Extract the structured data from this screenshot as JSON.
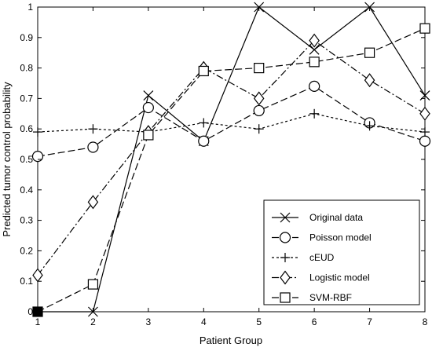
{
  "chart_data": {
    "type": "line",
    "xlabel": "Patient Group",
    "ylabel": "Predicted tumor control probability",
    "x": [
      1,
      2,
      3,
      4,
      5,
      6,
      7,
      8
    ],
    "xlim": [
      1,
      8
    ],
    "ylim": [
      0,
      1
    ],
    "xticks": [
      "1",
      "2",
      "3",
      "4",
      "5",
      "6",
      "7",
      "8"
    ],
    "yticks": [
      "0",
      "0.1",
      "0.2",
      "0.3",
      "0.4",
      "0.5",
      "0.6",
      "0.7",
      "0.8",
      "0.9",
      "1"
    ],
    "grid": false,
    "legend_position": "bottom-right",
    "series": [
      {
        "name": "Original data",
        "marker": "x",
        "line": "solid",
        "values": [
          0,
          0,
          0.71,
          0.56,
          1.0,
          0.86,
          1.0,
          0.71
        ]
      },
      {
        "name": "Poisson model",
        "marker": "circle",
        "line": "dashed",
        "values": [
          0.51,
          0.54,
          0.67,
          0.56,
          0.66,
          0.74,
          0.62,
          0.56
        ]
      },
      {
        "name": "cEUD",
        "marker": "plus",
        "line": "dotted",
        "values": [
          0.59,
          0.6,
          0.59,
          0.62,
          0.6,
          0.65,
          0.61,
          0.59
        ]
      },
      {
        "name": "Logistic model",
        "marker": "diamond",
        "line": "dashdot",
        "values": [
          0.12,
          0.36,
          0.59,
          0.8,
          0.7,
          0.89,
          0.76,
          0.65
        ]
      },
      {
        "name": "SVM-RBF",
        "marker": "square",
        "line": "dashed",
        "values": [
          0,
          0.09,
          0.58,
          0.79,
          0.8,
          0.82,
          0.85,
          0.93
        ]
      }
    ]
  }
}
